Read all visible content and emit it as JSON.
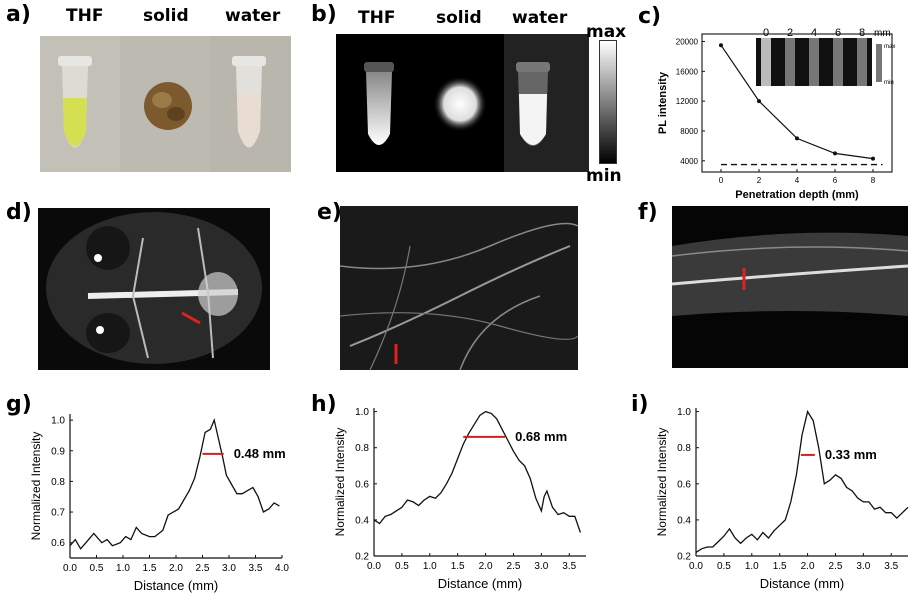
{
  "panels": {
    "a": {
      "letter": "a)",
      "labels": [
        "THF",
        "solid",
        "water"
      ]
    },
    "b": {
      "letter": "b)",
      "labels": [
        "THF",
        "solid",
        "water"
      ],
      "colorbar_max": "max",
      "colorbar_min": "min"
    },
    "c": {
      "letter": "c)"
    },
    "d": {
      "letter": "(d)"
    },
    "e": {
      "letter": "e)"
    },
    "f": {
      "letter": "f)"
    },
    "g": {
      "letter": "g)"
    },
    "h": {
      "letter": "h)"
    },
    "i": {
      "letter": "i)"
    }
  },
  "chart_data": [
    {
      "id": "c",
      "type": "line",
      "xlabel": "Penetration depth (mm)",
      "ylabel": "PL intensity",
      "x": [
        0,
        2,
        4,
        6,
        8
      ],
      "y": [
        19500,
        12000,
        7000,
        5000,
        4300
      ],
      "baseline": 3500,
      "xlim": [
        -1,
        9
      ],
      "ylim": [
        2500,
        21000
      ],
      "xticks": [
        0,
        2,
        4,
        6,
        8
      ],
      "yticks": [
        4000,
        8000,
        12000,
        16000,
        20000
      ],
      "inset": {
        "tick_labels": [
          "0",
          "2",
          "4",
          "6",
          "8"
        ],
        "unit": "mm",
        "bar_max": "max",
        "bar_min": "min"
      }
    },
    {
      "id": "g",
      "type": "line",
      "xlabel": "Distance (mm)",
      "ylabel": "Normalized Intensity",
      "xlim": [
        0,
        4.0
      ],
      "ylim": [
        0.55,
        1.02
      ],
      "xticks": [
        0.0,
        0.5,
        1.0,
        1.5,
        2.0,
        2.5,
        3.0,
        3.5,
        4.0
      ],
      "yticks": [
        0.6,
        0.7,
        0.8,
        0.9,
        1.0
      ],
      "tick_decimals_x": 1,
      "tick_decimals_y": 1,
      "points": [
        [
          0,
          0.59
        ],
        [
          0.1,
          0.61
        ],
        [
          0.2,
          0.58
        ],
        [
          0.3,
          0.6
        ],
        [
          0.45,
          0.63
        ],
        [
          0.6,
          0.6
        ],
        [
          0.7,
          0.61
        ],
        [
          0.8,
          0.59
        ],
        [
          0.95,
          0.6
        ],
        [
          1.05,
          0.62
        ],
        [
          1.15,
          0.61
        ],
        [
          1.25,
          0.65
        ],
        [
          1.35,
          0.63
        ],
        [
          1.5,
          0.62
        ],
        [
          1.6,
          0.62
        ],
        [
          1.75,
          0.64
        ],
        [
          1.85,
          0.69
        ],
        [
          1.95,
          0.7
        ],
        [
          2.05,
          0.71
        ],
        [
          2.15,
          0.74
        ],
        [
          2.25,
          0.77
        ],
        [
          2.35,
          0.81
        ],
        [
          2.45,
          0.88
        ],
        [
          2.55,
          0.96
        ],
        [
          2.65,
          0.97
        ],
        [
          2.72,
          1.0
        ],
        [
          2.8,
          0.94
        ],
        [
          2.88,
          0.88
        ],
        [
          2.95,
          0.82
        ],
        [
          3.05,
          0.79
        ],
        [
          3.15,
          0.76
        ],
        [
          3.25,
          0.76
        ],
        [
          3.35,
          0.77
        ],
        [
          3.45,
          0.78
        ],
        [
          3.55,
          0.75
        ],
        [
          3.65,
          0.7
        ],
        [
          3.75,
          0.71
        ],
        [
          3.85,
          0.73
        ],
        [
          3.95,
          0.72
        ]
      ],
      "fwhm": {
        "x1": 2.5,
        "x2": 2.9,
        "y": 0.89,
        "label": "0.48 mm"
      }
    },
    {
      "id": "h",
      "type": "line",
      "xlabel": "Distance (mm)",
      "ylabel": "Normalized Intensity",
      "xlim": [
        0,
        3.8
      ],
      "ylim": [
        0.2,
        1.02
      ],
      "xticks": [
        0.0,
        0.5,
        1.0,
        1.5,
        2.0,
        2.5,
        3.0,
        3.5
      ],
      "yticks": [
        0.2,
        0.4,
        0.6,
        0.8,
        1.0
      ],
      "tick_decimals_x": 1,
      "tick_decimals_y": 1,
      "points": [
        [
          0,
          0.4
        ],
        [
          0.1,
          0.38
        ],
        [
          0.2,
          0.42
        ],
        [
          0.3,
          0.43
        ],
        [
          0.4,
          0.45
        ],
        [
          0.5,
          0.47
        ],
        [
          0.6,
          0.51
        ],
        [
          0.7,
          0.5
        ],
        [
          0.8,
          0.48
        ],
        [
          0.9,
          0.51
        ],
        [
          1.0,
          0.53
        ],
        [
          1.1,
          0.52
        ],
        [
          1.2,
          0.55
        ],
        [
          1.3,
          0.6
        ],
        [
          1.4,
          0.66
        ],
        [
          1.5,
          0.74
        ],
        [
          1.6,
          0.82
        ],
        [
          1.7,
          0.88
        ],
        [
          1.8,
          0.93
        ],
        [
          1.9,
          0.98
        ],
        [
          2.0,
          1.0
        ],
        [
          2.1,
          0.99
        ],
        [
          2.2,
          0.96
        ],
        [
          2.3,
          0.9
        ],
        [
          2.4,
          0.84
        ],
        [
          2.5,
          0.78
        ],
        [
          2.6,
          0.73
        ],
        [
          2.7,
          0.7
        ],
        [
          2.8,
          0.63
        ],
        [
          2.9,
          0.52
        ],
        [
          3.0,
          0.45
        ],
        [
          3.05,
          0.53
        ],
        [
          3.1,
          0.56
        ],
        [
          3.2,
          0.47
        ],
        [
          3.3,
          0.43
        ],
        [
          3.4,
          0.44
        ],
        [
          3.5,
          0.42
        ],
        [
          3.6,
          0.42
        ],
        [
          3.7,
          0.33
        ]
      ],
      "fwhm": {
        "x1": 1.6,
        "x2": 2.35,
        "y": 0.86,
        "label": "0.68 mm"
      }
    },
    {
      "id": "i",
      "type": "line",
      "xlabel": "Distance (mm)",
      "ylabel": "Normalized Intensity",
      "xlim": [
        0,
        3.8
      ],
      "ylim": [
        0.2,
        1.02
      ],
      "xticks": [
        0.0,
        0.5,
        1.0,
        1.5,
        2.0,
        2.5,
        3.0,
        3.5
      ],
      "yticks": [
        0.2,
        0.4,
        0.6,
        0.8,
        1.0
      ],
      "tick_decimals_x": 1,
      "tick_decimals_y": 1,
      "points": [
        [
          0,
          0.22
        ],
        [
          0.1,
          0.24
        ],
        [
          0.2,
          0.25
        ],
        [
          0.3,
          0.25
        ],
        [
          0.4,
          0.28
        ],
        [
          0.5,
          0.31
        ],
        [
          0.6,
          0.35
        ],
        [
          0.7,
          0.3
        ],
        [
          0.8,
          0.27
        ],
        [
          0.9,
          0.3
        ],
        [
          1.0,
          0.32
        ],
        [
          1.1,
          0.29
        ],
        [
          1.2,
          0.33
        ],
        [
          1.3,
          0.3
        ],
        [
          1.4,
          0.34
        ],
        [
          1.5,
          0.37
        ],
        [
          1.6,
          0.4
        ],
        [
          1.7,
          0.5
        ],
        [
          1.8,
          0.65
        ],
        [
          1.9,
          0.87
        ],
        [
          2.0,
          1.0
        ],
        [
          2.1,
          0.95
        ],
        [
          2.2,
          0.8
        ],
        [
          2.3,
          0.6
        ],
        [
          2.4,
          0.62
        ],
        [
          2.5,
          0.65
        ],
        [
          2.6,
          0.63
        ],
        [
          2.7,
          0.58
        ],
        [
          2.8,
          0.56
        ],
        [
          2.9,
          0.52
        ],
        [
          3.0,
          0.5
        ],
        [
          3.1,
          0.5
        ],
        [
          3.2,
          0.46
        ],
        [
          3.3,
          0.47
        ],
        [
          3.4,
          0.44
        ],
        [
          3.5,
          0.44
        ],
        [
          3.6,
          0.41
        ],
        [
          3.7,
          0.44
        ],
        [
          3.8,
          0.47
        ]
      ],
      "fwhm": {
        "x1": 1.88,
        "x2": 2.13,
        "y": 0.76,
        "label": "0.33 mm"
      }
    }
  ],
  "colors": {
    "line": "#111111",
    "fwhm": "#cc2222",
    "scale_mark": "#dd2222"
  }
}
